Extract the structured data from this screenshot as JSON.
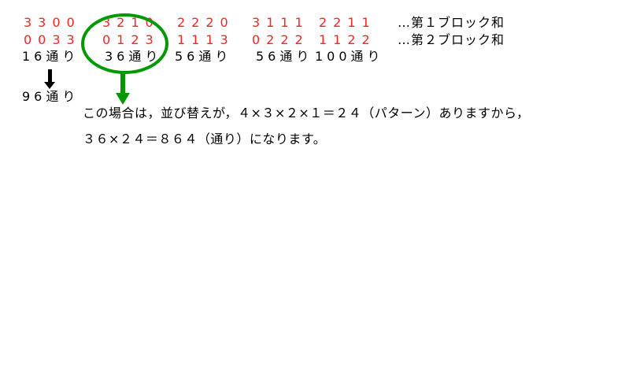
{
  "colors": {
    "number_red": "#ff2222",
    "annotation_green": "#009a00",
    "text_black": "#000000",
    "background": "#ffffff"
  },
  "grid": {
    "columns": [
      {
        "block1": "3300",
        "block2": "0033",
        "count": "16通り",
        "circled": false
      },
      {
        "block1": "3210",
        "block2": "0123",
        "count": "36通り",
        "circled": true
      },
      {
        "block1": "2220",
        "block2": "1113",
        "count": "56通り",
        "circled": false
      },
      {
        "block1": "3111",
        "block2": "0222",
        "count": "56通り",
        "circled": false
      },
      {
        "block1": "2211",
        "block2": "1122",
        "count": "100通り",
        "circled": false
      }
    ],
    "row_labels": {
      "block1": "…第１ブロック和",
      "block2": "…第２ブロック和"
    }
  },
  "left_summary": {
    "combined_count": "96通り"
  },
  "annotation": {
    "line1": "この場合は，並び替えが，４×３×２×１＝２４（パターン）ありますから，",
    "line2": "３６×２４＝８６４（通り）になります。"
  }
}
